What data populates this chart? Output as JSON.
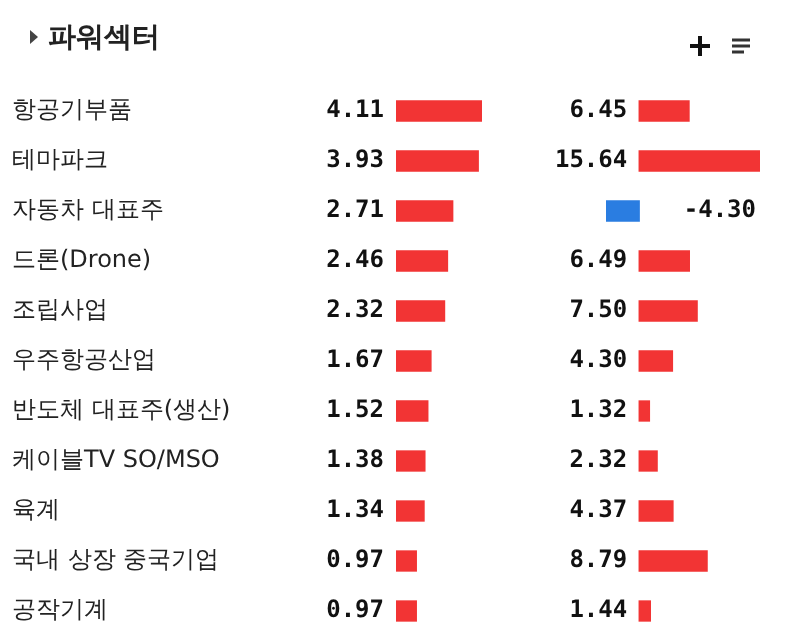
{
  "chart_data": [
    {
      "type": "bar",
      "orientation": "horizontal",
      "title": "파워섹터",
      "categories": [
        "항공기부품",
        "테마파크",
        "자동차 대표주",
        "드론(Drone)",
        "조립사업",
        "우주항공산업",
        "반도체 대표주(생산)",
        "케이블TV SO/MSO",
        "육계",
        "국내 상장 중국기업",
        "공작기계"
      ],
      "values": [
        4.11,
        3.93,
        2.71,
        2.46,
        2.32,
        1.67,
        1.52,
        1.38,
        1.34,
        0.97,
        0.97
      ],
      "value_labels": [
        "4.11",
        "3.93",
        "2.71",
        "2.46",
        "2.32",
        "1.67",
        "1.52",
        "1.38",
        "1.34",
        "0.97",
        "0.97"
      ],
      "color": "#f23434",
      "tick_labels": "y",
      "legend": false
    },
    {
      "type": "bar",
      "orientation": "horizontal",
      "categories": [
        null,
        null,
        null,
        null,
        null,
        null,
        null,
        null,
        null,
        null,
        null
      ],
      "values": [
        6.45,
        15.64,
        -4.3,
        6.49,
        7.5,
        4.3,
        1.32,
        2.32,
        4.37,
        8.79,
        1.44
      ],
      "value_labels": [
        "6.45",
        "15.64",
        "-4.30",
        "6.49",
        "7.50",
        "4.30",
        "1.32",
        "2.32",
        "4.37",
        "8.79",
        "1.44"
      ],
      "colors": [
        "#f23434",
        "#f23434",
        "#2a7de1",
        "#f23434",
        "#f23434",
        "#f23434",
        "#f23434",
        "#f23434",
        "#f23434",
        "#f23434",
        "#f23434"
      ],
      "tick_labels": false,
      "legend": false
    }
  ]
}
